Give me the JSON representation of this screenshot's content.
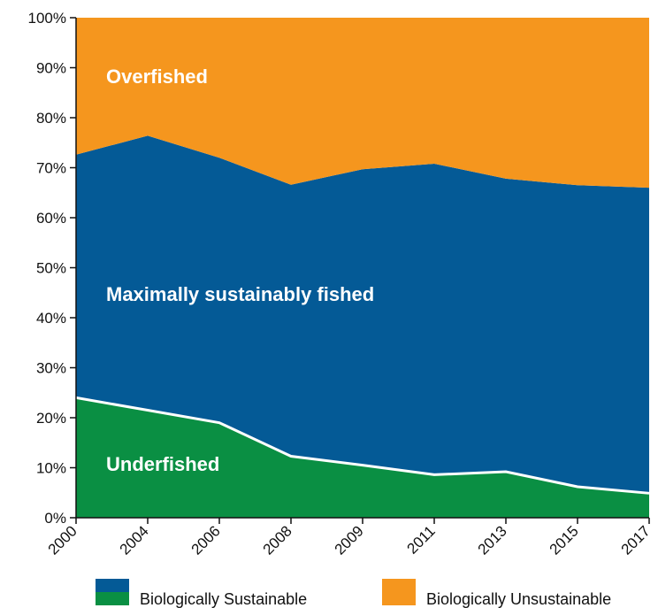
{
  "chart_data": {
    "type": "area",
    "stacked": true,
    "categories": [
      "2000",
      "2004",
      "2006",
      "2008",
      "2009",
      "2011",
      "2013",
      "2015",
      "2017"
    ],
    "series": [
      {
        "name": "Underfished",
        "values": [
          24,
          21.5,
          19,
          12.3,
          10.5,
          8.6,
          9.2,
          6.2,
          4.9
        ],
        "color": "#0a8f43"
      },
      {
        "name": "Maximally sustainably fished",
        "values": [
          48.6,
          54.9,
          53,
          54.3,
          59.2,
          62.2,
          58.6,
          60.3,
          61.1
        ],
        "color": "#045a96"
      },
      {
        "name": "Overfished",
        "values": [
          27.4,
          23.6,
          28,
          33.4,
          30.3,
          29.2,
          32.2,
          33.5,
          34
        ],
        "color": "#f5961e"
      }
    ],
    "yticks": [
      "0%",
      "10%",
      "20%",
      "30%",
      "40%",
      "50%",
      "60%",
      "70%",
      "80%",
      "90%",
      "100%"
    ],
    "ylim": [
      0,
      100
    ],
    "grid": false,
    "legend": {
      "placement": "bottom",
      "items": [
        {
          "label": "Biologically Sustainable",
          "colors": [
            "#045a96",
            "#0a8f43"
          ]
        },
        {
          "label": "Biologically Unsustainable",
          "colors": [
            "#f5961e"
          ]
        }
      ]
    },
    "divider_color": "#ffffff"
  }
}
